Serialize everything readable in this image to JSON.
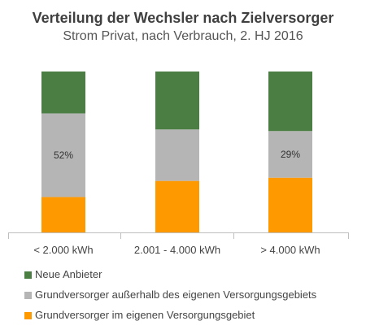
{
  "title": "Verteilung der Wechsler nach Zielversorger",
  "subtitle": "Strom Privat, nach Verbrauch, 2. HJ 2016",
  "chart_data": {
    "type": "bar",
    "stacked": true,
    "percent": true,
    "categories": [
      "< 2.000 kWh",
      "2.001 - 4.000 kWh",
      "> 4.000 kWh"
    ],
    "series": [
      {
        "name": "Grundversorger im eigenen Versorgungsgebiet",
        "color": "#FF9900",
        "values": [
          22,
          32,
          34
        ]
      },
      {
        "name": "Grundversorger außerhalb des eigenen Versorgungsgebiets",
        "color": "#B5B5B5",
        "values": [
          52,
          32,
          29
        ]
      },
      {
        "name": "Neue Anbieter",
        "color": "#4A7E43",
        "values": [
          26,
          36,
          37
        ]
      }
    ],
    "data_labels": [
      {
        "category": "< 2.000 kWh",
        "series": "Grundversorger außerhalb des eigenen Versorgungsgebiets",
        "text": "52%"
      },
      {
        "category": "> 4.000 kWh",
        "series": "Grundversorger außerhalb des eigenen Versorgungsgebiets",
        "text": "29%"
      }
    ],
    "ylim": [
      0,
      100
    ],
    "grid": false,
    "legend_position": "bottom-left"
  }
}
